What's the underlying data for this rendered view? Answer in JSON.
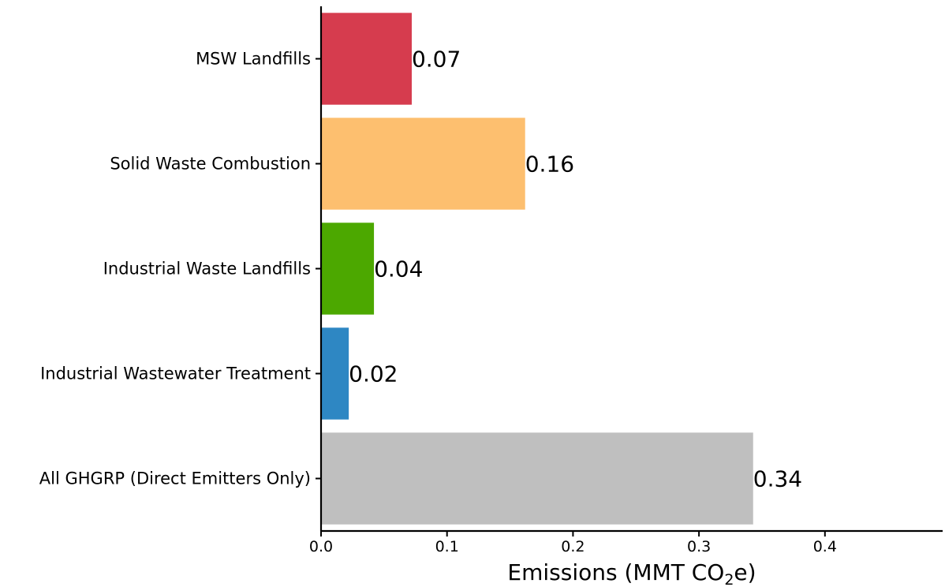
{
  "chart_data": {
    "type": "bar",
    "orientation": "horizontal",
    "categories": [
      "MSW Landfills",
      "Solid Waste Combustion",
      "Industrial Waste Landfills",
      "Industrial Wastewater Treatment",
      "All GHGRP (Direct Emitters Only)"
    ],
    "values": [
      0.072,
      0.162,
      0.042,
      0.022,
      0.343
    ],
    "data_labels": [
      "0.07",
      "0.16",
      "0.04",
      "0.02",
      "0.34"
    ],
    "colors": [
      "#d63c4e",
      "#fdbf6f",
      "#4ca800",
      "#2e87c3",
      "#bfbfbf"
    ],
    "xlim": [
      0,
      0.49
    ],
    "x_ticks": [
      0.0,
      0.1,
      0.2,
      0.3,
      0.4
    ],
    "x_tick_labels": [
      "0.0",
      "0.1",
      "0.2",
      "0.3",
      "0.4"
    ],
    "xlabel_prefix": "Emissions (MMT CO",
    "xlabel_subscript": "2",
    "xlabel_suffix": "e)",
    "grid": false,
    "legend": "none"
  }
}
